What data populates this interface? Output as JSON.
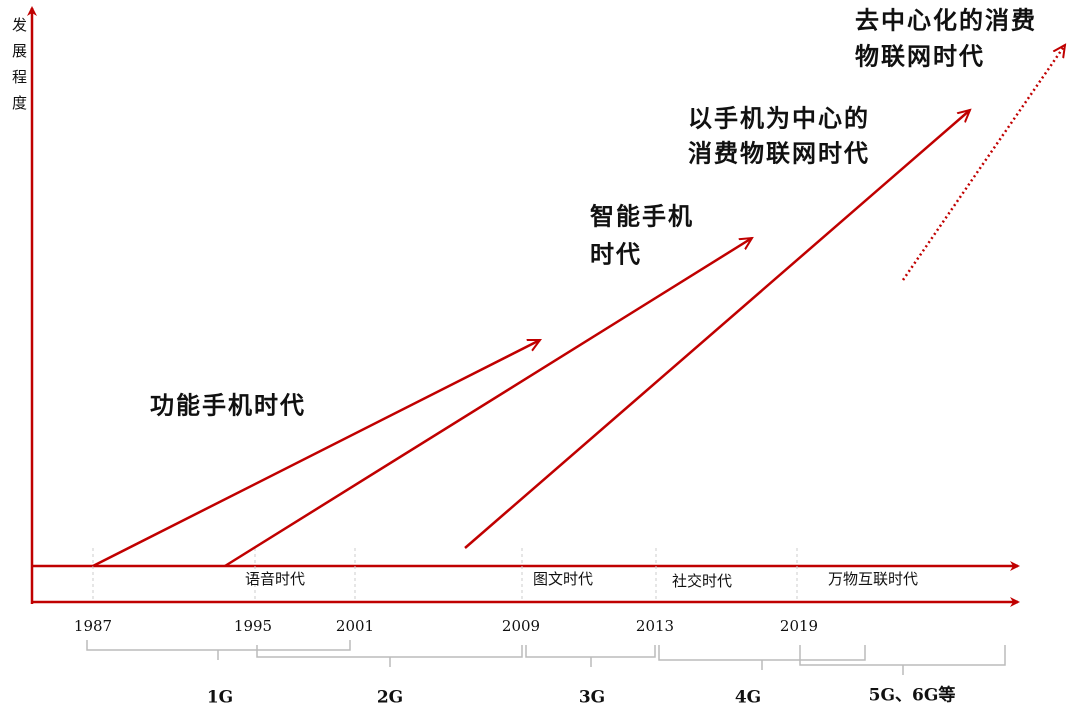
{
  "y_axis_label": [
    "发",
    "展",
    "程",
    "度"
  ],
  "eras": [
    {
      "lines": [
        "功能手机时代"
      ]
    },
    {
      "lines": [
        "智能手机",
        "时代"
      ]
    },
    {
      "lines": [
        "以手机为中心的",
        "消费物联网时代"
      ]
    },
    {
      "lines": [
        "去中心化的消费",
        "物联网时代"
      ]
    }
  ],
  "phases": [
    "语音时代",
    "图文时代",
    "社交时代",
    "万物互联时代"
  ],
  "years": [
    "1987",
    "1995",
    "2001",
    "2009",
    "2013",
    "2019"
  ],
  "generations": [
    "1G",
    "2G",
    "3G",
    "4G",
    "5G、6G等"
  ]
}
